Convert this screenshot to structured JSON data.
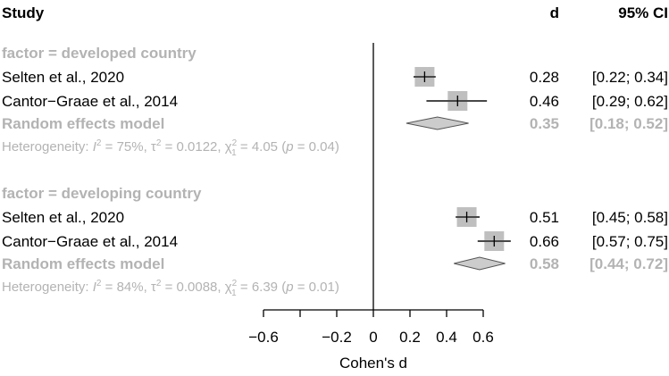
{
  "chart_data": {
    "type": "forest",
    "header": {
      "study": "Study",
      "effect": "d",
      "ci": "95% CI"
    },
    "xlabel": "Cohen's d",
    "xlim": [
      -0.6,
      0.6
    ],
    "xticks": [
      -0.6,
      -0.4,
      -0.2,
      0,
      0.2,
      0.4,
      0.6
    ],
    "xtick_labels": [
      "−0.6",
      "",
      "−0.2",
      "0",
      "0.2",
      "0.4",
      "0.6"
    ],
    "groups": [
      {
        "label": "factor = developed country",
        "studies": [
          {
            "name": "Selten et al., 2020",
            "d": 0.28,
            "lo": 0.22,
            "hi": 0.34,
            "d_text": "0.28",
            "ci_text": "[0.22; 0.34]"
          },
          {
            "name": "Cantor−Graae et al., 2014",
            "d": 0.46,
            "lo": 0.29,
            "hi": 0.62,
            "d_text": "0.46",
            "ci_text": "[0.29; 0.62]"
          }
        ],
        "pooled": {
          "name": "Random effects model",
          "d": 0.35,
          "lo": 0.18,
          "hi": 0.52,
          "d_text": "0.35",
          "ci_text": "[0.18; 0.52]"
        },
        "heterogeneity": {
          "prefix": "Heterogeneity: ",
          "i2_label": "I",
          "i2_value": " = 75%, ",
          "tau_label": "τ",
          "tau_value": " = 0.0122, ",
          "chi_label": "χ",
          "chi_df": "1",
          "chi_value": " = 4.05 (",
          "p_label": "p",
          "p_value": " = 0.04)"
        }
      },
      {
        "label": "factor = developing country",
        "studies": [
          {
            "name": "Selten et al., 2020",
            "d": 0.51,
            "lo": 0.45,
            "hi": 0.58,
            "d_text": "0.51",
            "ci_text": "[0.45; 0.58]"
          },
          {
            "name": "Cantor−Graae et al., 2014",
            "d": 0.66,
            "lo": 0.57,
            "hi": 0.75,
            "d_text": "0.66",
            "ci_text": "[0.57; 0.75]"
          }
        ],
        "pooled": {
          "name": "Random effects model",
          "d": 0.58,
          "lo": 0.44,
          "hi": 0.72,
          "d_text": "0.58",
          "ci_text": "[0.44; 0.72]"
        },
        "heterogeneity": {
          "prefix": "Heterogeneity: ",
          "i2_label": "I",
          "i2_value": " = 84%, ",
          "tau_label": "τ",
          "tau_value": " = 0.0088, ",
          "chi_label": "χ",
          "chi_df": "1",
          "chi_value": " = 6.39 (",
          "p_label": "p",
          "p_value": " = 0.01)"
        }
      }
    ],
    "colors": {
      "box": "#bfbfbf",
      "text": "#000000",
      "muted": "#b3b3b3",
      "diamond": "#cccccc"
    }
  }
}
